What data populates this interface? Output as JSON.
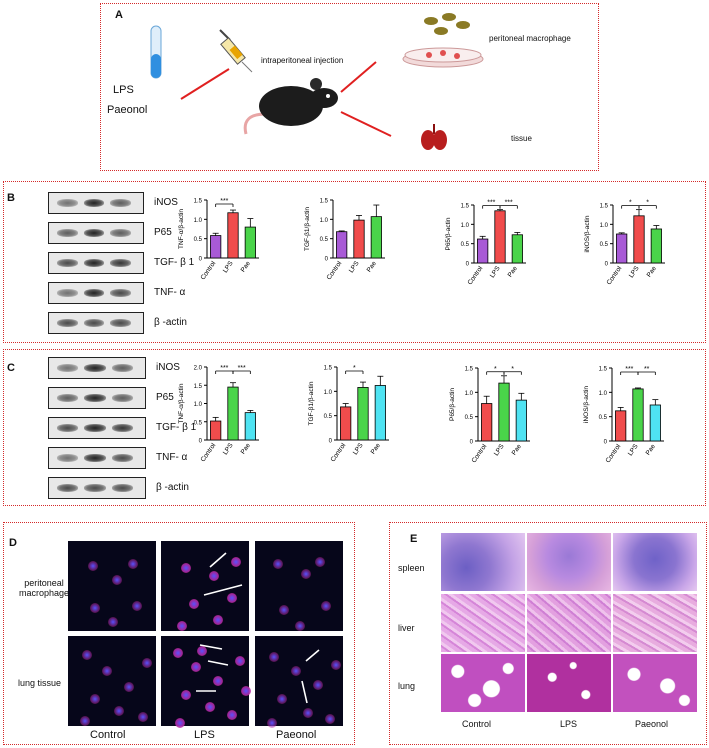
{
  "panelA": {
    "label": "A",
    "injection": "intraperitoneal injection",
    "drug1": "LPS",
    "drug2": "Paeonol",
    "target1": "peritoneal macrophage",
    "target2": "tissue"
  },
  "panelB": {
    "label": "B",
    "blot_labels": [
      "iNOS",
      "P65",
      "TGF- β 1",
      "TNF- α",
      "β -actin"
    ]
  },
  "panelC": {
    "label": "C",
    "blot_labels": [
      "iNOS",
      "P65",
      "TGF- β 1",
      "TNF- α",
      "β -actin"
    ]
  },
  "panelD": {
    "label": "D",
    "row1": "peritoneal macrophage",
    "row2": "lung tissue",
    "cols": [
      "Control",
      "LPS",
      "Paeonol"
    ]
  },
  "panelE": {
    "label": "E",
    "rows": [
      "spleen",
      "liver",
      "lung"
    ],
    "cols": [
      "Control",
      "LPS",
      "Paeonol"
    ]
  },
  "colors": {
    "purple": "#a85ad6",
    "red": "#f04c4c",
    "green": "#4ad44a",
    "cyan": "#4fe3f2",
    "panel_border": "#d42a2a"
  },
  "chart_data": [
    {
      "id": "B1",
      "type": "bar",
      "categories": [
        "Control",
        "LPS",
        "Pae"
      ],
      "values": [
        0.58,
        1.17,
        0.8
      ],
      "errors": [
        0.06,
        0.07,
        0.22
      ],
      "colors": [
        "purple",
        "red",
        "green"
      ],
      "ylabel": "TNF-α/β-actin",
      "ylim": [
        0,
        1.5
      ],
      "ticks": [
        0,
        0.5,
        1.0,
        1.5
      ],
      "sig": [
        [
          "0",
          "1",
          "***"
        ]
      ]
    },
    {
      "id": "B2",
      "type": "bar",
      "categories": [
        "Control",
        "LPS",
        "Pae"
      ],
      "values": [
        0.68,
        0.98,
        1.07
      ],
      "errors": [
        0.02,
        0.12,
        0.3
      ],
      "colors": [
        "purple",
        "red",
        "green"
      ],
      "ylabel": "TGF-β1/β-actin",
      "ylim": [
        0,
        1.5
      ],
      "ticks": [
        0,
        0.5,
        1.0,
        1.5
      ],
      "sig": []
    },
    {
      "id": "B3",
      "type": "bar",
      "categories": [
        "Control",
        "LPS",
        "Pae"
      ],
      "values": [
        0.62,
        1.35,
        0.73
      ],
      "errors": [
        0.07,
        0.03,
        0.06
      ],
      "colors": [
        "purple",
        "red",
        "green"
      ],
      "ylabel": "P65/β-actin",
      "ylim": [
        0,
        1.5
      ],
      "ticks": [
        0,
        0.5,
        1.0,
        1.5
      ],
      "sig": [
        [
          "0",
          "1",
          "***"
        ],
        [
          "1",
          "2",
          "***"
        ]
      ]
    },
    {
      "id": "B4",
      "type": "bar",
      "categories": [
        "Control",
        "LPS",
        "Pae"
      ],
      "values": [
        0.75,
        1.22,
        0.88
      ],
      "errors": [
        0.03,
        0.16,
        0.09
      ],
      "colors": [
        "purple",
        "red",
        "green"
      ],
      "ylabel": "iNOS/β-actin",
      "ylim": [
        0,
        1.5
      ],
      "ticks": [
        0,
        0.5,
        1.0,
        1.5
      ],
      "sig": [
        [
          "0",
          "1",
          "*"
        ],
        [
          "1",
          "2",
          "*"
        ]
      ]
    },
    {
      "id": "C1",
      "type": "bar",
      "categories": [
        "Control",
        "LPS",
        "Pae"
      ],
      "values": [
        0.52,
        1.45,
        0.75
      ],
      "errors": [
        0.1,
        0.12,
        0.06
      ],
      "colors": [
        "red",
        "green",
        "cyan"
      ],
      "ylabel": "TNF-α/β-actin",
      "ylim": [
        0,
        2.0
      ],
      "ticks": [
        0,
        0.5,
        1.0,
        1.5,
        2.0
      ],
      "sig": [
        [
          "0",
          "1",
          "***"
        ],
        [
          "1",
          "2",
          "***"
        ]
      ]
    },
    {
      "id": "C2",
      "type": "bar",
      "categories": [
        "Control",
        "LPS",
        "Pae"
      ],
      "values": [
        0.68,
        1.08,
        1.12
      ],
      "errors": [
        0.07,
        0.11,
        0.19
      ],
      "colors": [
        "red",
        "green",
        "cyan"
      ],
      "ylabel": "TGF-β1/β-actin",
      "ylim": [
        0,
        1.5
      ],
      "ticks": [
        0,
        0.5,
        1.0,
        1.5
      ],
      "sig": [
        [
          "0",
          "1",
          "*"
        ]
      ]
    },
    {
      "id": "C3",
      "type": "bar",
      "categories": [
        "Control",
        "LPS",
        "Pae"
      ],
      "values": [
        0.77,
        1.19,
        0.84
      ],
      "errors": [
        0.15,
        0.15,
        0.14
      ],
      "colors": [
        "red",
        "green",
        "cyan"
      ],
      "ylabel": "P65/β-actin",
      "ylim": [
        0,
        1.5
      ],
      "ticks": [
        0,
        0.5,
        1.0,
        1.5
      ],
      "sig": [
        [
          "0",
          "1",
          "*"
        ],
        [
          "1",
          "2",
          "*"
        ]
      ]
    },
    {
      "id": "C4",
      "type": "bar",
      "categories": [
        "Control",
        "LPS",
        "Pae"
      ],
      "values": [
        0.62,
        1.07,
        0.74
      ],
      "errors": [
        0.07,
        0.02,
        0.11
      ],
      "colors": [
        "red",
        "green",
        "cyan"
      ],
      "ylabel": "iNOS/β-actin",
      "ylim": [
        0,
        1.5
      ],
      "ticks": [
        0,
        0.5,
        1.0,
        1.5
      ],
      "sig": [
        [
          "0",
          "1",
          "***"
        ],
        [
          "1",
          "2",
          "**"
        ]
      ]
    }
  ]
}
